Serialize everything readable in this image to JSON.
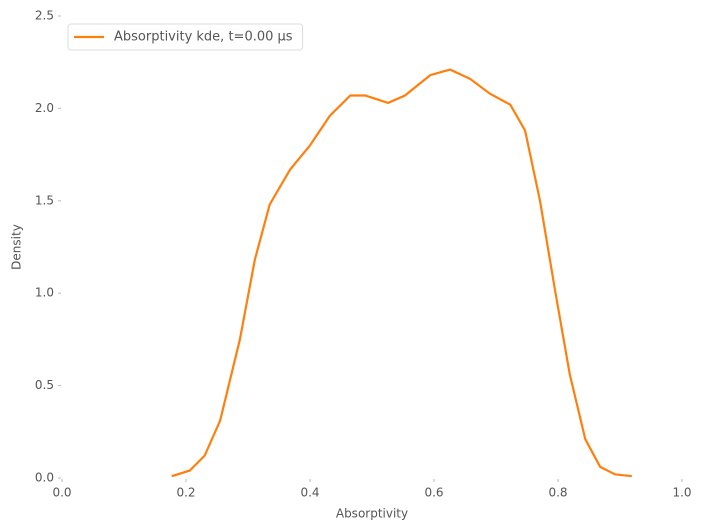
{
  "chart_data": {
    "type": "line",
    "xlabel": "Absorptivity",
    "ylabel": "Density",
    "x": [
      0.177,
      0.206,
      0.23,
      0.255,
      0.287,
      0.311,
      0.335,
      0.368,
      0.4,
      0.432,
      0.465,
      0.489,
      0.526,
      0.553,
      0.594,
      0.626,
      0.658,
      0.69,
      0.723,
      0.747,
      0.771,
      0.795,
      0.819,
      0.844,
      0.868,
      0.892,
      0.919
    ],
    "series": [
      {
        "name": "Absorptivity kde, t=0.00 μs",
        "color": "#ff7f0e",
        "values": [
          0.01,
          0.04,
          0.12,
          0.31,
          0.75,
          1.18,
          1.48,
          1.67,
          1.8,
          1.96,
          2.07,
          2.07,
          2.03,
          2.07,
          2.18,
          2.21,
          2.16,
          2.08,
          2.02,
          1.88,
          1.5,
          1.02,
          0.56,
          0.21,
          0.06,
          0.02,
          0.01
        ]
      }
    ],
    "xlim": [
      0,
      1
    ],
    "ylim": [
      0,
      2.5
    ],
    "xticks": [
      {
        "value": 0,
        "label": "0.0"
      },
      0.2,
      0.4,
      0.6,
      0.8,
      {
        "value": 1,
        "label": "1.0"
      }
    ],
    "yticks": [
      {
        "value": 0,
        "label": "0.0"
      },
      0.5,
      {
        "value": 1,
        "label": "1.0"
      },
      1.5,
      {
        "value": 2,
        "label": "2.0"
      },
      2.5
    ],
    "legend": "upper left",
    "grid": false
  }
}
